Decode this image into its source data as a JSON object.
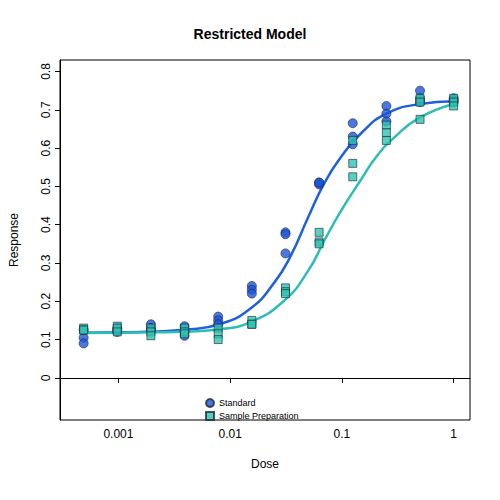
{
  "chart_data": {
    "type": "scatter",
    "title": "Restricted Model",
    "x_label": "Dose",
    "y_label": "Response",
    "log": "x",
    "grid": false,
    "legend": "bottom",
    "xlim": [
      0.0003,
      1.4
    ],
    "xticks": [
      0.001,
      0.01,
      0.1,
      1
    ],
    "ylim": [
      -0.11,
      0.83
    ],
    "yticks": [
      0,
      0.1,
      0.2,
      0.3,
      0.4,
      0.5,
      0.6,
      0.7,
      0.8
    ],
    "series": [
      {
        "name": "Standard",
        "type": "scatter",
        "marker": "circle",
        "color": "#1d55dc",
        "x": [
          1,
          1,
          1,
          0.5,
          0.5,
          0.5,
          0.25,
          0.25,
          0.25,
          0.125,
          0.125,
          0.125,
          0.0625,
          0.0625,
          0.0625,
          0.03125,
          0.03125,
          0.03125,
          0.015625,
          0.015625,
          0.015625,
          0.0078125,
          0.0078125,
          0.0078125,
          0.00390625,
          0.00390625,
          0.00390625,
          0.001953125,
          0.001953125,
          0.001953125,
          0.0009765625,
          0.0009765625,
          0.0009765625,
          0.00048828125,
          0.00048828125,
          0.00048828125
        ],
        "values": [
          0.73,
          0.72,
          0.725,
          0.75,
          0.73,
          0.72,
          0.71,
          0.69,
          0.67,
          0.665,
          0.63,
          0.61,
          0.51,
          0.505,
          0.51,
          0.38,
          0.375,
          0.325,
          0.24,
          0.23,
          0.22,
          0.16,
          0.15,
          0.14,
          0.135,
          0.12,
          0.11,
          0.14,
          0.13,
          0.125,
          0.13,
          0.12,
          0.125,
          0.125,
          0.105,
          0.09
        ]
      },
      {
        "name": "Sample Preparation",
        "type": "scatter",
        "marker": "square",
        "color": "#2ec4b0",
        "x": [
          1,
          1,
          1,
          0.5,
          0.5,
          0.5,
          0.25,
          0.25,
          0.25,
          0.125,
          0.125,
          0.125,
          0.0625,
          0.0625,
          0.0625,
          0.03125,
          0.03125,
          0.03125,
          0.015625,
          0.015625,
          0.015625,
          0.0078125,
          0.0078125,
          0.0078125,
          0.00390625,
          0.00390625,
          0.00390625,
          0.001953125,
          0.001953125,
          0.001953125,
          0.0009765625,
          0.0009765625,
          0.0009765625,
          0.00048828125,
          0.00048828125,
          0.00048828125
        ],
        "values": [
          0.73,
          0.72,
          0.71,
          0.73,
          0.72,
          0.675,
          0.66,
          0.64,
          0.62,
          0.56,
          0.525,
          0.62,
          0.38,
          0.355,
          0.35,
          0.235,
          0.225,
          0.22,
          0.15,
          0.14,
          0.14,
          0.13,
          0.115,
          0.1,
          0.13,
          0.12,
          0.115,
          0.13,
          0.12,
          0.11,
          0.135,
          0.13,
          0.12,
          0.13,
          0.125,
          0.125
        ]
      },
      {
        "type": "line",
        "color": "#1f5fe0",
        "x": [
          0.0005,
          0.001,
          0.002,
          0.004,
          0.008,
          0.015,
          0.025,
          0.035,
          0.05,
          0.07,
          0.1,
          0.15,
          0.25,
          0.5,
          1
        ],
        "values": [
          0.118,
          0.119,
          0.121,
          0.126,
          0.14,
          0.18,
          0.25,
          0.32,
          0.42,
          0.51,
          0.58,
          0.64,
          0.69,
          0.715,
          0.722
        ]
      },
      {
        "type": "line",
        "color": "#2cbdb5",
        "x": [
          0.0005,
          0.001,
          0.002,
          0.004,
          0.008,
          0.015,
          0.03,
          0.05,
          0.07,
          0.1,
          0.15,
          0.2,
          0.3,
          0.5,
          1
        ],
        "values": [
          0.117,
          0.118,
          0.119,
          0.121,
          0.127,
          0.145,
          0.2,
          0.28,
          0.36,
          0.44,
          0.52,
          0.575,
          0.63,
          0.68,
          0.715
        ]
      }
    ]
  }
}
